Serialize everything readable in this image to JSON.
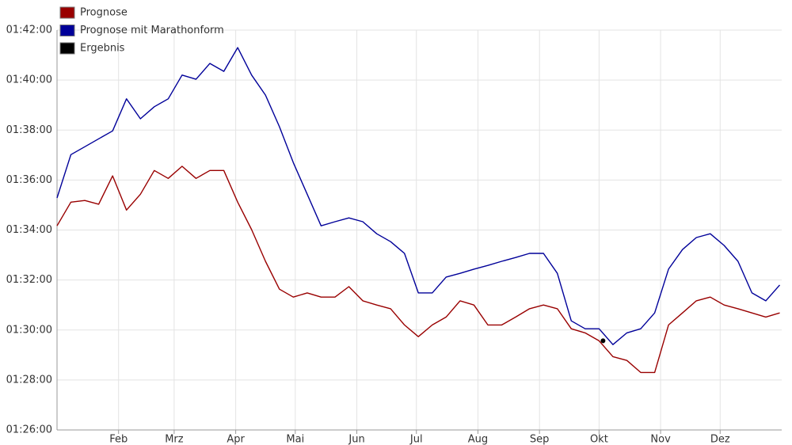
{
  "chart_data": {
    "type": "line",
    "x": [
      0,
      7,
      14,
      21,
      28,
      35,
      42,
      49,
      56,
      63,
      70,
      77,
      84,
      91,
      98,
      105,
      112,
      119,
      126,
      133,
      140,
      147,
      154,
      161,
      168,
      175,
      182,
      189,
      196,
      203,
      210,
      217,
      224,
      231,
      238,
      245,
      252,
      259,
      266,
      273,
      280,
      287,
      294,
      301,
      308,
      315,
      322,
      329,
      336,
      343,
      350,
      357,
      364
    ],
    "xlim": [
      0,
      365
    ],
    "xticks": [
      {
        "value": 31,
        "label": "Feb"
      },
      {
        "value": 59,
        "label": "Mrz"
      },
      {
        "value": 90,
        "label": "Apr"
      },
      {
        "value": 120,
        "label": "Mai"
      },
      {
        "value": 151,
        "label": "Jun"
      },
      {
        "value": 181,
        "label": "Jul"
      },
      {
        "value": 212,
        "label": "Aug"
      },
      {
        "value": 243,
        "label": "Sep"
      },
      {
        "value": 273,
        "label": "Okt"
      },
      {
        "value": 304,
        "label": "Nov"
      },
      {
        "value": 334,
        "label": "Dez"
      }
    ],
    "ylim": [
      5160,
      6120
    ],
    "yticks": [
      {
        "value": 5160,
        "label": "01:26:00"
      },
      {
        "value": 5280,
        "label": "01:28:00"
      },
      {
        "value": 5400,
        "label": "01:30:00"
      },
      {
        "value": 5520,
        "label": "01:32:00"
      },
      {
        "value": 5640,
        "label": "01:34:00"
      },
      {
        "value": 5760,
        "label": "01:36:00"
      },
      {
        "value": 5880,
        "label": "01:38:00"
      },
      {
        "value": 6000,
        "label": "01:40:00"
      },
      {
        "value": 6120,
        "label": "01:42:00"
      }
    ],
    "grid": true,
    "legend": "top-left",
    "series": [
      {
        "name": "Prognose",
        "color": "#990000",
        "values": [
          5650,
          5707,
          5711,
          5702,
          5770,
          5688,
          5726,
          5783,
          5764,
          5793,
          5764,
          5783,
          5783,
          5707,
          5641,
          5565,
          5498,
          5479,
          5489,
          5479,
          5479,
          5504,
          5470,
          5460,
          5451,
          5412,
          5384,
          5412,
          5431,
          5470,
          5460,
          5412,
          5412,
          5431,
          5451,
          5460,
          5451,
          5403,
          5393,
          5374,
          5336,
          5327,
          5298,
          5298,
          5412,
          5441,
          5470,
          5479,
          5460,
          5451,
          5441,
          5431,
          5441
        ]
      },
      {
        "name": "Prognose mit Marathonform",
        "color": "#000099",
        "values": [
          5717,
          5821,
          5840,
          5859,
          5878,
          5955,
          5907,
          5936,
          5955,
          6012,
          6002,
          6040,
          6021,
          6078,
          6012,
          5964,
          5888,
          5802,
          5726,
          5650,
          5660,
          5669,
          5660,
          5631,
          5612,
          5584,
          5489,
          5489,
          5527,
          5536,
          5546,
          5555,
          5565,
          5574,
          5584,
          5584,
          5536,
          5422,
          5403,
          5403,
          5365,
          5393,
          5403,
          5441,
          5546,
          5593,
          5622,
          5631,
          5603,
          5565,
          5489,
          5470,
          5508
        ]
      },
      {
        "name": "Ergebnis",
        "color": "#000000",
        "x": [
          275
        ],
        "values": [
          5374
        ]
      }
    ]
  }
}
